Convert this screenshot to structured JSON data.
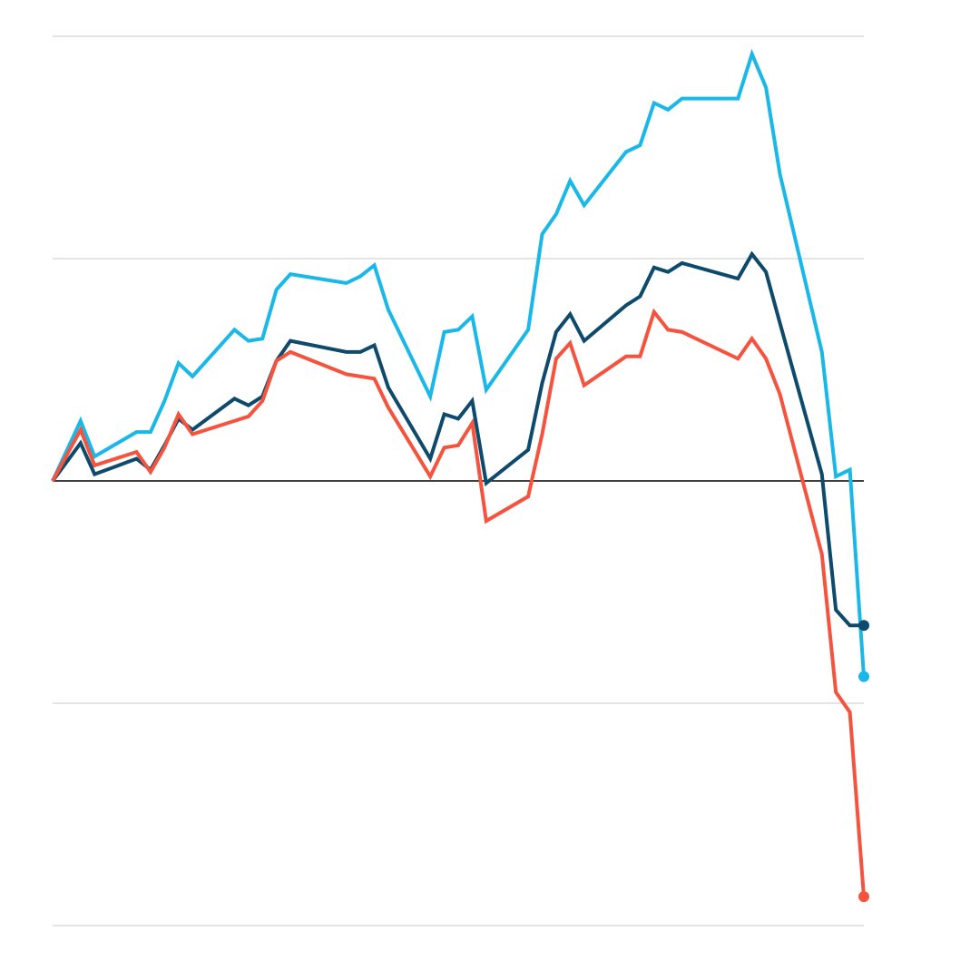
{
  "chart_data": {
    "type": "line",
    "x": [
      0,
      2,
      3,
      6,
      7,
      8,
      9,
      10,
      13,
      14,
      15,
      16,
      17,
      21,
      22,
      23,
      24,
      27,
      28,
      29,
      30,
      31,
      34,
      35,
      36,
      37,
      38,
      41,
      42,
      43,
      44,
      45,
      49,
      50,
      51,
      52,
      55,
      56,
      57,
      58
    ],
    "xlim": [
      0,
      58
    ],
    "ylim": [
      -2,
      2
    ],
    "yticks": [
      -2,
      -1,
      0,
      1,
      2
    ],
    "grid": true,
    "series": [
      {
        "color": "#1ab8e8",
        "values": [
          0,
          0.27,
          0.11,
          0.22,
          0.22,
          0.36,
          0.53,
          0.47,
          0.68,
          0.63,
          0.64,
          0.86,
          0.93,
          0.89,
          0.92,
          0.97,
          0.77,
          0.38,
          0.67,
          0.68,
          0.74,
          0.41,
          0.68,
          1.11,
          1.2,
          1.35,
          1.24,
          1.48,
          1.51,
          1.7,
          1.67,
          1.72,
          1.72,
          1.92,
          1.77,
          1.38,
          0.58,
          0.02,
          0.05,
          -0.88
        ]
      },
      {
        "color": "#0d4a6b",
        "values": [
          0,
          0.17,
          0.03,
          0.1,
          0.05,
          0.16,
          0.28,
          0.23,
          0.37,
          0.34,
          0.38,
          0.54,
          0.63,
          0.58,
          0.58,
          0.61,
          0.42,
          0.1,
          0.3,
          0.28,
          0.36,
          -0.01,
          0.14,
          0.44,
          0.67,
          0.75,
          0.63,
          0.79,
          0.83,
          0.96,
          0.94,
          0.98,
          0.91,
          1.02,
          0.94,
          0.71,
          0.03,
          -0.58,
          -0.65,
          -0.65
        ]
      },
      {
        "color": "#f5533d",
        "values": [
          0,
          0.23,
          0.07,
          0.13,
          0.04,
          0.15,
          0.3,
          0.21,
          0.27,
          0.29,
          0.36,
          0.54,
          0.58,
          0.48,
          0.47,
          0.46,
          0.33,
          0.02,
          0.15,
          0.16,
          0.26,
          -0.18,
          -0.07,
          0.21,
          0.55,
          0.62,
          0.43,
          0.56,
          0.56,
          0.76,
          0.68,
          0.67,
          0.55,
          0.64,
          0.55,
          0.39,
          -0.33,
          -0.95,
          -1.04,
          -1.87
        ]
      }
    ]
  }
}
